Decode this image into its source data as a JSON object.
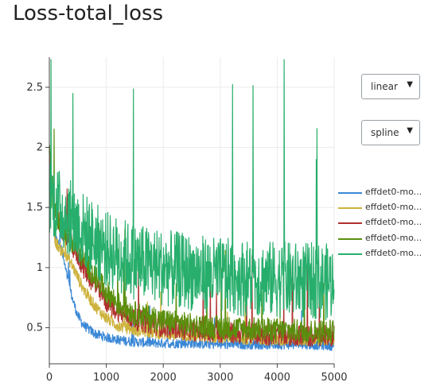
{
  "title": "Loss-total_loss",
  "controls": {
    "scale": "linear",
    "interpolation": "spline",
    "arrow": "▼"
  },
  "chart_data": {
    "type": "line",
    "title": "Loss-total_loss",
    "xlabel": "",
    "ylabel": "",
    "xlim": [
      0,
      5000
    ],
    "ylim": [
      0.2,
      2.75
    ],
    "x_ticks": [
      0,
      1000,
      2000,
      3000,
      4000,
      5000
    ],
    "y_ticks": [
      0.5,
      1,
      1.5,
      2,
      2.5
    ],
    "grid": true,
    "legend_position": "right",
    "series": [
      {
        "name": "effdet0-mo...",
        "color": "#3a87d6",
        "x": [
          0,
          100,
          200,
          300,
          400,
          500,
          600,
          800,
          1000,
          1200,
          1500,
          2000,
          2500,
          3000,
          3500,
          4000,
          4500,
          5000
        ],
        "y": [
          1.95,
          1.25,
          1.18,
          0.95,
          0.75,
          0.6,
          0.52,
          0.45,
          0.42,
          0.4,
          0.38,
          0.37,
          0.37,
          0.36,
          0.36,
          0.36,
          0.36,
          0.35
        ],
        "noise": 0.04
      },
      {
        "name": "effdet0-mo...",
        "color": "#cdb23b",
        "x": [
          0,
          100,
          200,
          300,
          400,
          500,
          600,
          800,
          1000,
          1200,
          1500,
          2000,
          2500,
          3000,
          3500,
          4000,
          4500,
          5000
        ],
        "y": [
          1.95,
          1.22,
          1.15,
          1.1,
          1.02,
          0.92,
          0.82,
          0.68,
          0.58,
          0.52,
          0.48,
          0.45,
          0.43,
          0.42,
          0.41,
          0.4,
          0.4,
          0.4
        ],
        "noise": 0.05
      },
      {
        "name": "effdet0-mo...",
        "color": "#b1302e",
        "x": [
          0,
          100,
          200,
          300,
          400,
          500,
          600,
          800,
          1000,
          1200,
          1500,
          2000,
          2500,
          3000,
          3500,
          4000,
          4500,
          5000
        ],
        "y": [
          1.95,
          1.45,
          1.35,
          1.25,
          1.18,
          1.1,
          1.0,
          0.85,
          0.72,
          0.64,
          0.57,
          0.51,
          0.48,
          0.46,
          0.45,
          0.44,
          0.43,
          0.43
        ],
        "noise": 0.09
      },
      {
        "name": "effdet0-mo...",
        "color": "#5a8f0e",
        "x": [
          0,
          100,
          200,
          300,
          400,
          500,
          600,
          800,
          1000,
          1200,
          1500,
          2000,
          2500,
          3000,
          3500,
          4000,
          4500,
          5000
        ],
        "y": [
          1.95,
          1.45,
          1.38,
          1.3,
          1.22,
          1.15,
          1.07,
          0.92,
          0.8,
          0.7,
          0.62,
          0.56,
          0.52,
          0.5,
          0.49,
          0.48,
          0.47,
          0.47
        ],
        "noise": 0.1
      },
      {
        "name": "effdet0-mo...",
        "color": "#27ae6c",
        "x": [
          0,
          100,
          200,
          500,
          1000,
          1500,
          2000,
          2500,
          3000,
          3500,
          4000,
          4500,
          5000
        ],
        "y": [
          1.6,
          1.55,
          1.48,
          1.35,
          1.15,
          1.05,
          1.0,
          0.96,
          0.93,
          0.91,
          0.9,
          0.89,
          0.88
        ],
        "noise": 0.32
      }
    ]
  }
}
